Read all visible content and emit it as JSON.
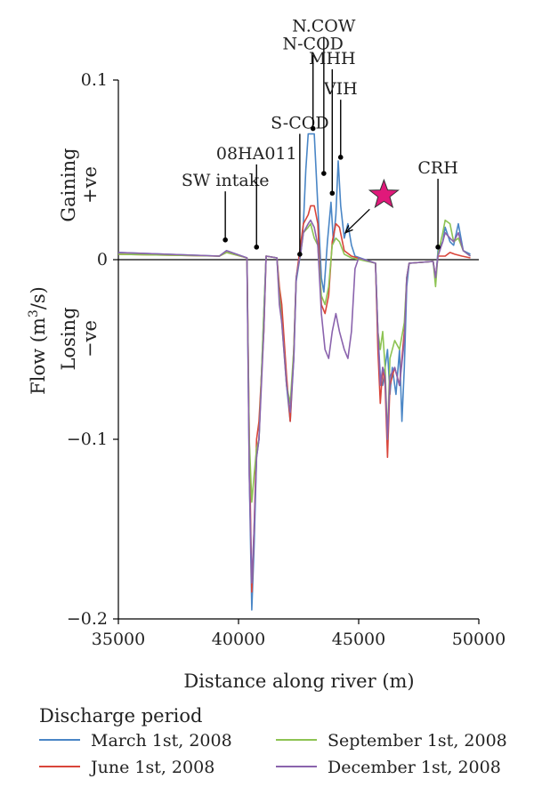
{
  "chart_data": {
    "type": "line",
    "xlabel": "Distance along river (m)",
    "ylabel": "Flow (m³/s)",
    "ylabel_base": "Flow (m",
    "ylabel_sup": "3",
    "ylabel_tail": "/s)",
    "gaining_label": "Gaining",
    "gaining_sub": "+ve",
    "losing_label": "Losing",
    "losing_sub": "−ve",
    "xlim": [
      35000,
      50000
    ],
    "ylim": [
      -0.2,
      0.1
    ],
    "x_ticks": [
      35000,
      40000,
      45000,
      50000
    ],
    "x_tick_labels": [
      "35000",
      "40000",
      "45000",
      "50000"
    ],
    "y_ticks": [
      -0.2,
      -0.1,
      0,
      0.1
    ],
    "y_tick_labels": [
      "−0.2",
      "−0.1",
      "0",
      "0.1"
    ],
    "legend_title": "Discharge period",
    "legend_position": "bottom",
    "series": [
      {
        "name": "March 1st, 2008",
        "color": "#4a86c6",
        "points": [
          [
            35000,
            0.004
          ],
          [
            39200,
            0.002
          ],
          [
            39500,
            0.005
          ],
          [
            40350,
            0.001
          ],
          [
            40450,
            -0.12
          ],
          [
            40550,
            -0.195
          ],
          [
            40650,
            -0.16
          ],
          [
            40750,
            -0.11
          ],
          [
            40850,
            -0.1
          ],
          [
            41050,
            -0.03
          ],
          [
            41150,
            0.002
          ],
          [
            41600,
            0.001
          ],
          [
            41700,
            -0.02
          ],
          [
            41800,
            -0.03
          ],
          [
            42000,
            -0.07
          ],
          [
            42150,
            -0.09
          ],
          [
            42300,
            -0.055
          ],
          [
            42400,
            -0.012
          ],
          [
            42600,
            0.005
          ],
          [
            42700,
            0.02
          ],
          [
            42800,
            0.05
          ],
          [
            42900,
            0.07
          ],
          [
            43000,
            0.07
          ],
          [
            43150,
            0.07
          ],
          [
            43300,
            0.03
          ],
          [
            43450,
            -0.01
          ],
          [
            43550,
            -0.018
          ],
          [
            43700,
            0.01
          ],
          [
            43850,
            0.032
          ],
          [
            43950,
            0.01
          ],
          [
            44050,
            0.025
          ],
          [
            44150,
            0.055
          ],
          [
            44250,
            0.03
          ],
          [
            44400,
            0.012
          ],
          [
            44550,
            0.02
          ],
          [
            44700,
            0.008
          ],
          [
            44850,
            0.002
          ],
          [
            45700,
            -0.002
          ],
          [
            45800,
            -0.04
          ],
          [
            45900,
            -0.065
          ],
          [
            46000,
            -0.07
          ],
          [
            46200,
            -0.05
          ],
          [
            46300,
            -0.075
          ],
          [
            46400,
            -0.06
          ],
          [
            46550,
            -0.075
          ],
          [
            46700,
            -0.05
          ],
          [
            46800,
            -0.09
          ],
          [
            46900,
            -0.06
          ],
          [
            47000,
            -0.015
          ],
          [
            47100,
            -0.002
          ],
          [
            48100,
            -0.001
          ],
          [
            48200,
            -0.012
          ],
          [
            48300,
            0.005
          ],
          [
            48500,
            0.01
          ],
          [
            48600,
            0.018
          ],
          [
            48800,
            0.01
          ],
          [
            48950,
            0.008
          ],
          [
            49150,
            0.02
          ],
          [
            49350,
            0.005
          ],
          [
            49650,
            0.003
          ]
        ]
      },
      {
        "name": "June 1st, 2008",
        "color": "#d9453a",
        "points": [
          [
            35000,
            0.003
          ],
          [
            39200,
            0.002
          ],
          [
            39500,
            0.004
          ],
          [
            40350,
            0.001
          ],
          [
            40450,
            -0.1
          ],
          [
            40550,
            -0.185
          ],
          [
            40650,
            -0.15
          ],
          [
            40750,
            -0.1
          ],
          [
            40850,
            -0.09
          ],
          [
            41050,
            -0.04
          ],
          [
            41150,
            0.002
          ],
          [
            41600,
            0.001
          ],
          [
            41700,
            -0.015
          ],
          [
            41800,
            -0.025
          ],
          [
            42000,
            -0.065
          ],
          [
            42150,
            -0.09
          ],
          [
            42300,
            -0.05
          ],
          [
            42400,
            -0.01
          ],
          [
            42600,
            0.01
          ],
          [
            42700,
            0.02
          ],
          [
            42900,
            0.025
          ],
          [
            43000,
            0.03
          ],
          [
            43150,
            0.03
          ],
          [
            43300,
            0.02
          ],
          [
            43450,
            -0.025
          ],
          [
            43600,
            -0.03
          ],
          [
            43750,
            -0.02
          ],
          [
            43900,
            0.01
          ],
          [
            44050,
            0.02
          ],
          [
            44200,
            0.018
          ],
          [
            44400,
            0.005
          ],
          [
            44700,
            0.002
          ],
          [
            45700,
            -0.002
          ],
          [
            45800,
            -0.05
          ],
          [
            45900,
            -0.08
          ],
          [
            46000,
            -0.06
          ],
          [
            46100,
            -0.07
          ],
          [
            46200,
            -0.11
          ],
          [
            46300,
            -0.07
          ],
          [
            46500,
            -0.06
          ],
          [
            46700,
            -0.07
          ],
          [
            46900,
            -0.04
          ],
          [
            47000,
            -0.01
          ],
          [
            47100,
            -0.002
          ],
          [
            48100,
            -0.001
          ],
          [
            48200,
            -0.01
          ],
          [
            48300,
            0.002
          ],
          [
            48600,
            0.002
          ],
          [
            48800,
            0.004
          ],
          [
            49000,
            0.003
          ],
          [
            49300,
            0.002
          ],
          [
            49650,
            0.001
          ]
        ]
      },
      {
        "name": "September 1st, 2008",
        "color": "#8dc353",
        "points": [
          [
            35000,
            0.003
          ],
          [
            39200,
            0.002
          ],
          [
            39500,
            0.004
          ],
          [
            40350,
            0.001
          ],
          [
            40450,
            -0.1
          ],
          [
            40550,
            -0.135
          ],
          [
            40650,
            -0.12
          ],
          [
            40750,
            -0.105
          ],
          [
            40850,
            -0.1
          ],
          [
            41050,
            -0.03
          ],
          [
            41150,
            0.002
          ],
          [
            41600,
            0.001
          ],
          [
            41700,
            -0.02
          ],
          [
            41800,
            -0.035
          ],
          [
            42000,
            -0.07
          ],
          [
            42150,
            -0.08
          ],
          [
            42300,
            -0.05
          ],
          [
            42400,
            -0.01
          ],
          [
            42600,
            0.005
          ],
          [
            42700,
            0.015
          ],
          [
            42900,
            0.018
          ],
          [
            43000,
            0.02
          ],
          [
            43150,
            0.012
          ],
          [
            43300,
            0.008
          ],
          [
            43450,
            -0.02
          ],
          [
            43600,
            -0.025
          ],
          [
            43750,
            -0.015
          ],
          [
            43900,
            0.008
          ],
          [
            44050,
            0.012
          ],
          [
            44200,
            0.01
          ],
          [
            44400,
            0.003
          ],
          [
            44700,
            0.001
          ],
          [
            45700,
            -0.002
          ],
          [
            45800,
            -0.04
          ],
          [
            45900,
            -0.05
          ],
          [
            46000,
            -0.04
          ],
          [
            46100,
            -0.06
          ],
          [
            46200,
            -0.1
          ],
          [
            46300,
            -0.055
          ],
          [
            46500,
            -0.045
          ],
          [
            46700,
            -0.05
          ],
          [
            46900,
            -0.035
          ],
          [
            47000,
            -0.01
          ],
          [
            47100,
            -0.002
          ],
          [
            48100,
            -0.001
          ],
          [
            48200,
            -0.015
          ],
          [
            48300,
            0.003
          ],
          [
            48500,
            0.015
          ],
          [
            48600,
            0.022
          ],
          [
            48800,
            0.02
          ],
          [
            48950,
            0.01
          ],
          [
            49150,
            0.012
          ],
          [
            49350,
            0.005
          ],
          [
            49650,
            0.002
          ]
        ]
      },
      {
        "name": "December 1st, 2008",
        "color": "#8a63ad",
        "points": [
          [
            35000,
            0.004
          ],
          [
            39200,
            0.002
          ],
          [
            39500,
            0.005
          ],
          [
            40350,
            0.001
          ],
          [
            40450,
            -0.12
          ],
          [
            40550,
            -0.18
          ],
          [
            40650,
            -0.15
          ],
          [
            40750,
            -0.11
          ],
          [
            40850,
            -0.1
          ],
          [
            41050,
            -0.04
          ],
          [
            41150,
            0.002
          ],
          [
            41600,
            0.001
          ],
          [
            41700,
            -0.025
          ],
          [
            41800,
            -0.035
          ],
          [
            42000,
            -0.07
          ],
          [
            42150,
            -0.085
          ],
          [
            42300,
            -0.055
          ],
          [
            42400,
            -0.01
          ],
          [
            42600,
            0.005
          ],
          [
            42700,
            0.015
          ],
          [
            42900,
            0.02
          ],
          [
            43000,
            0.022
          ],
          [
            43150,
            0.018
          ],
          [
            43300,
            0.008
          ],
          [
            43450,
            -0.03
          ],
          [
            43600,
            -0.05
          ],
          [
            43750,
            -0.055
          ],
          [
            43900,
            -0.04
          ],
          [
            44050,
            -0.03
          ],
          [
            44200,
            -0.04
          ],
          [
            44400,
            -0.05
          ],
          [
            44550,
            -0.055
          ],
          [
            44700,
            -0.04
          ],
          [
            44850,
            -0.005
          ],
          [
            45000,
            0.001
          ],
          [
            45700,
            -0.002
          ],
          [
            45800,
            -0.04
          ],
          [
            45900,
            -0.07
          ],
          [
            46000,
            -0.06
          ],
          [
            46100,
            -0.065
          ],
          [
            46200,
            -0.1
          ],
          [
            46300,
            -0.065
          ],
          [
            46500,
            -0.06
          ],
          [
            46700,
            -0.07
          ],
          [
            46900,
            -0.045
          ],
          [
            47000,
            -0.01
          ],
          [
            47100,
            -0.002
          ],
          [
            48100,
            -0.001
          ],
          [
            48200,
            -0.01
          ],
          [
            48300,
            0.002
          ],
          [
            48500,
            0.01
          ],
          [
            48600,
            0.015
          ],
          [
            48800,
            0.012
          ],
          [
            48950,
            0.01
          ],
          [
            49150,
            0.015
          ],
          [
            49350,
            0.005
          ],
          [
            49650,
            0.002
          ]
        ]
      }
    ],
    "annotations": [
      {
        "label": "SW intake",
        "x": 39450,
        "y_point": 0.011,
        "label_y": 0.041
      },
      {
        "label": "08HA011",
        "x": 40750,
        "y_point": 0.007,
        "label_y": 0.056
      },
      {
        "label": "S-COD",
        "x": 42550,
        "y_point": 0.003,
        "label_y": 0.073
      },
      {
        "label": "N-COD",
        "x": 43100,
        "y_point": 0.073,
        "label_y": 0.117
      },
      {
        "label": "N.COW",
        "x": 43550,
        "y_point": 0.048,
        "label_y": 0.127
      },
      {
        "label": "MHH",
        "x": 43900,
        "y_point": 0.037,
        "label_y": 0.109
      },
      {
        "label": "VIH",
        "x": 44250,
        "y_point": 0.057,
        "label_y": 0.092
      },
      {
        "label": "CRH",
        "x": 48300,
        "y_point": 0.007,
        "label_y": 0.048
      }
    ],
    "star": {
      "x": 46050,
      "y": 0.036,
      "color": "#e0197a"
    }
  }
}
